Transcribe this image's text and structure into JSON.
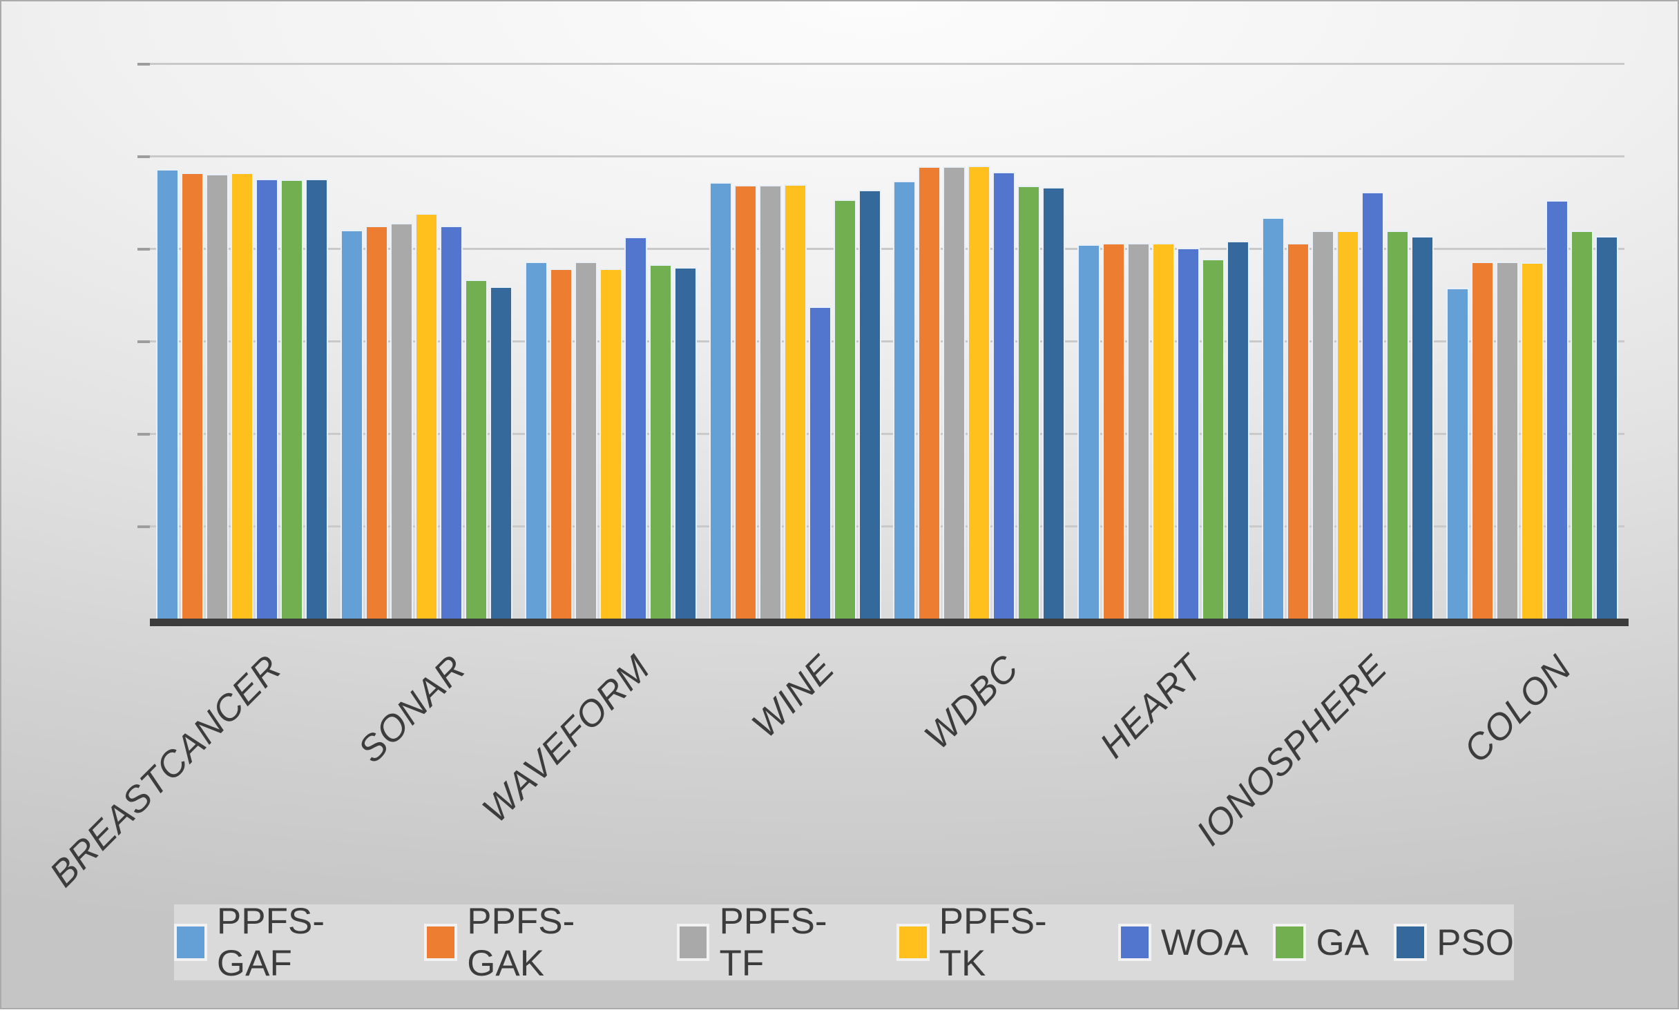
{
  "chart_data": {
    "type": "bar",
    "title": "",
    "categories": [
      "BREASTCANCER",
      "SONAR",
      "WAVEFORM",
      "WINE",
      "WDBC",
      "HEART",
      "IONOSPHERE",
      "COLON"
    ],
    "series": [
      {
        "name": "PPFS-GAF",
        "color": "#64A0D6",
        "values": [
          0.972,
          0.84,
          0.772,
          0.943,
          0.946,
          0.809,
          0.867,
          0.715
        ]
      },
      {
        "name": "PPFS-GAK",
        "color": "#ED7D31",
        "values": [
          0.964,
          0.849,
          0.757,
          0.937,
          0.978,
          0.812,
          0.812,
          0.772
        ]
      },
      {
        "name": "PPFS-TF",
        "color": "#A9A9A9",
        "values": [
          0.961,
          0.855,
          0.772,
          0.937,
          0.978,
          0.812,
          0.839,
          0.772
        ]
      },
      {
        "name": "PPFS-TK",
        "color": "#FFC01E",
        "values": [
          0.964,
          0.876,
          0.757,
          0.939,
          0.979,
          0.812,
          0.839,
          0.77
        ]
      },
      {
        "name": "WOA",
        "color": "#5276CD",
        "values": [
          0.951,
          0.849,
          0.825,
          0.675,
          0.966,
          0.801,
          0.922,
          0.904
        ]
      },
      {
        "name": "GA",
        "color": "#72AF50",
        "values": [
          0.949,
          0.733,
          0.766,
          0.906,
          0.936,
          0.778,
          0.839,
          0.839
        ]
      },
      {
        "name": "PSO",
        "color": "#35689B",
        "values": [
          0.951,
          0.718,
          0.76,
          0.927,
          0.933,
          0.816,
          0.827,
          0.827
        ]
      }
    ],
    "xlabel": "",
    "ylabel": "",
    "ylim": [
      0,
      1.2
    ],
    "gridline_step": 0.2,
    "y_axis_tick_labels_visible": false,
    "grid": true,
    "legend_position": "bottom",
    "x_label_rotation_deg": -45
  },
  "style": {
    "axis_line_color": "#3c3c3c",
    "gridline_color": "#c9c9c9",
    "tick_color": "#9d9d9d",
    "text_color": "#3c3c3c",
    "legend_background": "#dadada",
    "bar_outline_color": "#e9f0f7"
  }
}
